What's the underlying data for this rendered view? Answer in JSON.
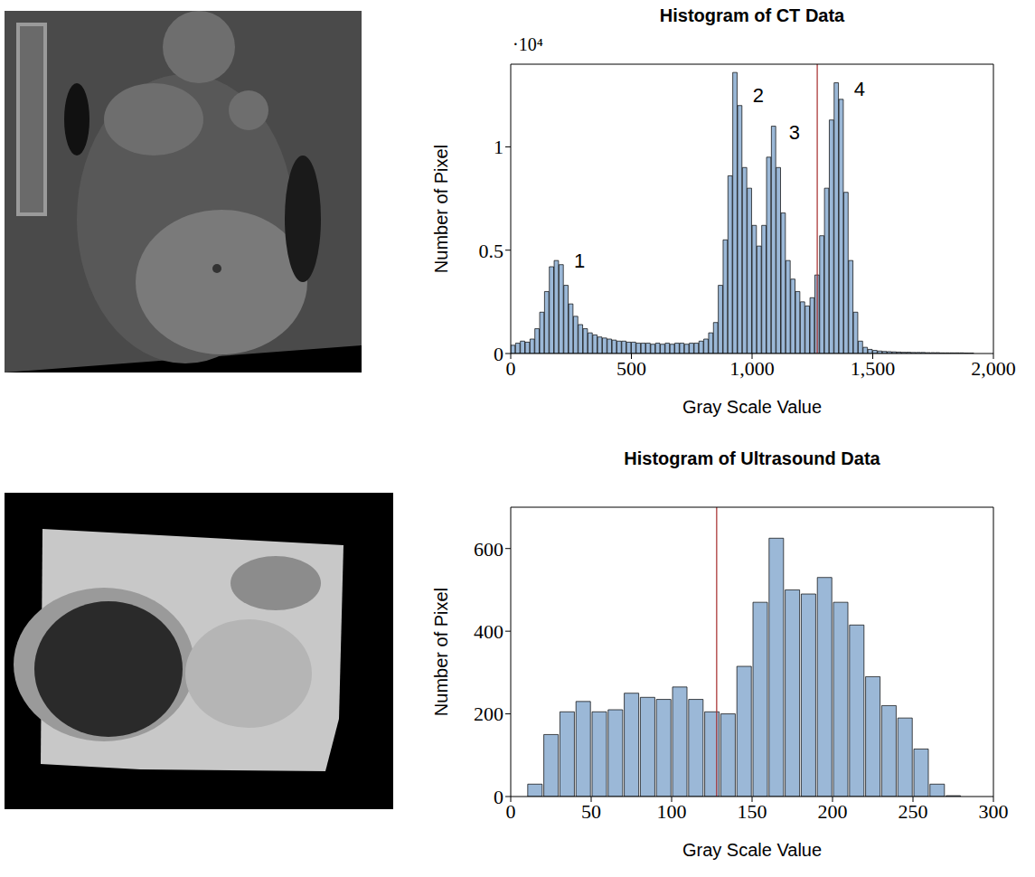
{
  "chart_data": [
    {
      "type": "histogram",
      "title": "Histogram of CT Data",
      "x_label": "Gray Scale Value",
      "y_label": "Number of Pixel",
      "y_unit_label": "·10⁴",
      "bins": [
        0,
        20,
        40,
        60,
        80,
        100,
        120,
        140,
        160,
        180,
        200,
        220,
        240,
        260,
        280,
        300,
        320,
        340,
        360,
        380,
        400,
        420,
        440,
        460,
        480,
        500,
        520,
        540,
        560,
        580,
        600,
        620,
        640,
        660,
        680,
        700,
        720,
        740,
        760,
        780,
        800,
        820,
        840,
        860,
        880,
        900,
        920,
        940,
        960,
        980,
        1000,
        1020,
        1040,
        1060,
        1080,
        1100,
        1120,
        1140,
        1160,
        1180,
        1200,
        1220,
        1240,
        1260,
        1280,
        1300,
        1320,
        1340,
        1360,
        1380,
        1400,
        1420,
        1440,
        1460,
        1480,
        1500,
        1520,
        1540,
        1560,
        1580,
        1600,
        1620,
        1640,
        1660,
        1680,
        1700,
        1720,
        1740,
        1760,
        1780,
        1800,
        1820,
        1840,
        1860,
        1880,
        1900,
        1920
      ],
      "counts": [
        0.04,
        0.05,
        0.06,
        0.055,
        0.07,
        0.12,
        0.2,
        0.3,
        0.42,
        0.45,
        0.43,
        0.33,
        0.24,
        0.18,
        0.14,
        0.12,
        0.1,
        0.09,
        0.08,
        0.075,
        0.07,
        0.065,
        0.06,
        0.06,
        0.055,
        0.055,
        0.05,
        0.05,
        0.05,
        0.045,
        0.05,
        0.045,
        0.05,
        0.045,
        0.05,
        0.05,
        0.045,
        0.05,
        0.05,
        0.06,
        0.07,
        0.1,
        0.15,
        0.33,
        0.55,
        0.86,
        1.36,
        1.2,
        0.9,
        0.8,
        0.62,
        0.52,
        0.62,
        0.95,
        1.1,
        0.9,
        0.68,
        0.45,
        0.36,
        0.3,
        0.25,
        0.23,
        0.27,
        0.38,
        0.57,
        0.8,
        1.13,
        1.31,
        1.23,
        0.78,
        0.45,
        0.2,
        0.06,
        0.03,
        0.02,
        0.015,
        0.012,
        0.01,
        0.009,
        0.008,
        0.007,
        0.006,
        0.006,
        0.005,
        0.005,
        0.005,
        0.004,
        0.004,
        0.004,
        0.003,
        0.003,
        0.003,
        0.003,
        0.003,
        0.002,
        0.002
      ],
      "color": "#9bb8d7",
      "threshold": 1270,
      "annotations": [
        {
          "text": "1",
          "x": 240,
          "y": 0.45
        },
        {
          "text": "2",
          "x": 980,
          "y": 1.25
        },
        {
          "text": "3",
          "x": 1130,
          "y": 1.07
        },
        {
          "text": "4",
          "x": 1400,
          "y": 1.28
        }
      ],
      "xlim": [
        0,
        2000
      ],
      "xticks": [
        0,
        500,
        {
          "value": 1000,
          "label": "1,000"
        },
        {
          "value": 1500,
          "label": "1,500"
        },
        {
          "value": 2000,
          "label": "2,000"
        }
      ],
      "ylim": [
        0,
        1.4
      ],
      "yticks": [
        0,
        0.5,
        1
      ]
    },
    {
      "type": "histogram",
      "title": "Histogram of Ultrasound Data",
      "x_label": "Gray Scale Value",
      "y_label": "Number of Pixel",
      "bins": [
        10,
        20,
        30,
        40,
        50,
        60,
        70,
        80,
        90,
        100,
        110,
        120,
        130,
        140,
        150,
        160,
        170,
        180,
        190,
        200,
        210,
        220,
        230,
        240,
        250,
        260,
        270,
        280
      ],
      "counts": [
        30,
        150,
        205,
        230,
        205,
        210,
        250,
        240,
        235,
        265,
        235,
        205,
        200,
        315,
        470,
        625,
        500,
        490,
        530,
        470,
        415,
        290,
        220,
        190,
        115,
        30,
        2
      ],
      "color": "#9bb8d7",
      "threshold": 128,
      "xlim": [
        0,
        300
      ],
      "xticks": [
        0,
        50,
        100,
        150,
        200,
        250,
        300
      ],
      "ylim": [
        0,
        700
      ],
      "yticks": [
        0,
        200,
        400,
        600
      ]
    }
  ]
}
